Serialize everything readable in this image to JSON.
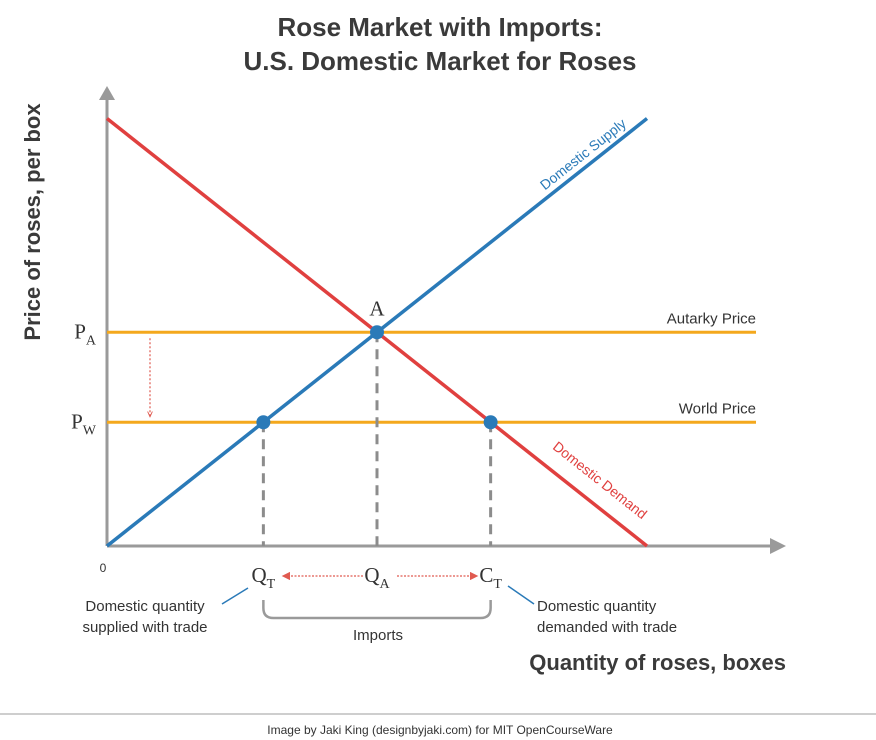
{
  "chart_data": {
    "type": "line",
    "title_line1": "Rose Market with Imports:",
    "title_line2": "U.S. Domestic Market for Roses",
    "xlabel": "Quantity of roses, boxes",
    "ylabel": "Price of roses, per box",
    "origin_label": "0",
    "xlim": [
      0,
      6
    ],
    "ylim": [
      0,
      4
    ],
    "series": [
      {
        "name": "Domestic Supply",
        "x": [
          0,
          4.8
        ],
        "y": [
          0,
          3.8
        ],
        "color": "#2a7ab8"
      },
      {
        "name": "Domestic Demand",
        "x": [
          0,
          4.8
        ],
        "y": [
          3.8,
          0
        ],
        "color": "#e0403f"
      }
    ],
    "hlines": [
      {
        "label": "Autarky Price",
        "y": 1.9,
        "color": "#f4a81d"
      },
      {
        "label": "World Price",
        "y": 1.1,
        "color": "#f4a81d"
      }
    ],
    "price_ticks": [
      {
        "main": "P",
        "sub": "A",
        "y": 1.9
      },
      {
        "main": "P",
        "sub": "W",
        "y": 1.1
      }
    ],
    "quantity_ticks": [
      {
        "main": "Q",
        "sub": "T",
        "x": 1.39
      },
      {
        "main": "Q",
        "sub": "A",
        "x": 2.4
      },
      {
        "main": "C",
        "sub": "T",
        "x": 3.41
      }
    ],
    "points": [
      {
        "label": "A",
        "x": 2.4,
        "y": 1.9
      },
      {
        "label": "",
        "x": 1.39,
        "y": 1.1
      },
      {
        "label": "",
        "x": 3.41,
        "y": 1.1
      }
    ],
    "annotations": {
      "supplied_line1": "Domestic quantity",
      "supplied_line2": "supplied with trade",
      "demanded_line1": "Domestic quantity",
      "demanded_line2": "demanded with trade",
      "imports": "Imports"
    },
    "colors": {
      "supply": "#2a7ab8",
      "demand": "#e0403f",
      "price_line": "#f4a81d",
      "axis": "#9a9a9a",
      "dash": "#8c8c8c",
      "arrow": "#e05a50"
    }
  },
  "footer": {
    "credit": "Image by Jaki King (designbyjaki.com) for MIT OpenCourseWare"
  }
}
